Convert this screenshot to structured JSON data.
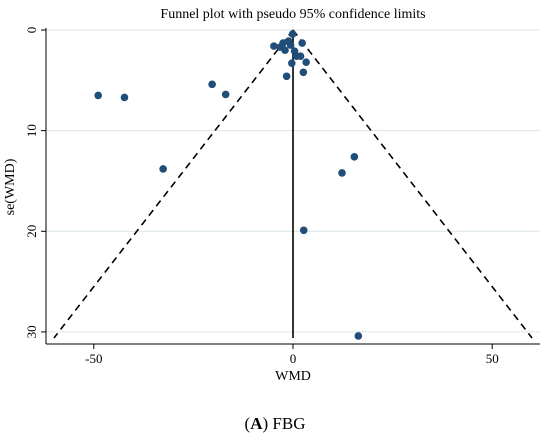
{
  "chart_data": {
    "type": "scatter",
    "title": "Funnel plot with pseudo 95% confidence limits",
    "xlabel": "WMD",
    "ylabel": "se(WMD)",
    "xlim": [
      -62,
      62
    ],
    "ylim": [
      31.2,
      -0.2
    ],
    "y_reversed": true,
    "x_ticks": [
      "-50",
      "0",
      "50"
    ],
    "y_ticks": [
      "0",
      "10",
      "20",
      "30"
    ],
    "grid": true,
    "pooled_estimate": 0,
    "funnel_apex": [
      0,
      0
    ],
    "funnel_base_se": 30.6,
    "funnel_half_width_at_base": 60,
    "points": [
      {
        "x": -48.9,
        "y": 6.5
      },
      {
        "x": -42.3,
        "y": 6.7
      },
      {
        "x": -32.6,
        "y": 13.8
      },
      {
        "x": -20.3,
        "y": 5.4
      },
      {
        "x": -16.9,
        "y": 6.4
      },
      {
        "x": -4.8,
        "y": 1.6
      },
      {
        "x": -3.2,
        "y": 1.7
      },
      {
        "x": -2.5,
        "y": 1.3
      },
      {
        "x": -2.0,
        "y": 2.0
      },
      {
        "x": -1.6,
        "y": 4.6
      },
      {
        "x": -1.1,
        "y": 1.1
      },
      {
        "x": -0.6,
        "y": 1.5
      },
      {
        "x": -0.1,
        "y": 0.4
      },
      {
        "x": -0.3,
        "y": 3.3
      },
      {
        "x": 0.4,
        "y": 2.1
      },
      {
        "x": 0.9,
        "y": 2.6
      },
      {
        "x": 1.9,
        "y": 2.6
      },
      {
        "x": 2.3,
        "y": 1.3
      },
      {
        "x": 2.6,
        "y": 4.2
      },
      {
        "x": 3.3,
        "y": 3.2
      },
      {
        "x": 2.7,
        "y": 19.9
      },
      {
        "x": 12.3,
        "y": 14.2
      },
      {
        "x": 15.4,
        "y": 12.6
      },
      {
        "x": 16.4,
        "y": 30.4
      }
    ],
    "colors": {
      "point": "#1f4e79",
      "grid": "#d9e6ea",
      "axis": "#000000"
    }
  },
  "caption": {
    "label": "A",
    "text": ") FBG",
    "open_paren": "("
  }
}
